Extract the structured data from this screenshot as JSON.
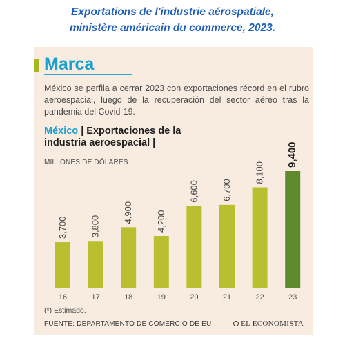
{
  "caption": {
    "line1": "Exportations de l'industrie aérospatiale,",
    "line2": "ministère américain du commerce, 2023."
  },
  "brand": "Marca",
  "intro_text": "México se perfila a cerrar 2023 con exportaciones récord en el rubro aeroespacial, luego de la recuperación del sector aéreo tras la pandemia del Covid-19.",
  "chart_heading": {
    "country": "México",
    "separator": " | ",
    "title": "Exportaciones de la industria aeroespacial",
    "trailing": " |"
  },
  "units": "MILLONES DE DÓLARES",
  "footnote": "(*) Estimado.",
  "source": "FUENTE: DEPARTAMENTO DE COMERCIO DE EU",
  "publisher": "EL ECONOMISTA",
  "colors": {
    "bar": "#b9bf2e",
    "bar_highlight": "#5e8a2b",
    "background": "#f8ece0",
    "accent": "#1a9fcf",
    "caption": "#1f5fb8"
  },
  "chart_data": {
    "type": "bar",
    "title": "Exportaciones de la industria aeroespacial",
    "ylabel": "MILLONES DE DÓLARES",
    "categories": [
      "16",
      "17",
      "18",
      "19",
      "20",
      "21",
      "22",
      "23"
    ],
    "values": [
      3700,
      3800,
      4900,
      4200,
      6600,
      6700,
      8100,
      9400
    ],
    "value_labels": [
      "3,700",
      "3,800",
      "4,900",
      "4,200",
      "6,600",
      "6,700",
      "8,100",
      "9,400"
    ],
    "highlight_index": 7,
    "ylim": [
      0,
      9400
    ],
    "grid": false
  }
}
